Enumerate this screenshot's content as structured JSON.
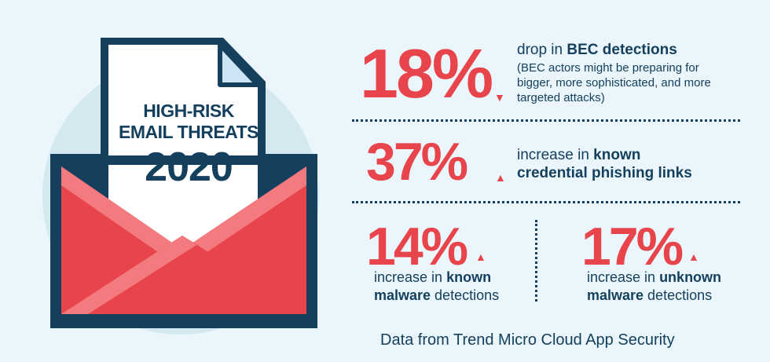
{
  "envelope": {
    "title_line1": "HIGH-RISK",
    "title_line2": "EMAIL THREATS",
    "year": "2020"
  },
  "stats": [
    {
      "value": "18%",
      "direction": "down",
      "text_pre": "drop in ",
      "text_bold": "BEC detections",
      "note": "(BEC actors might be preparing for bigger, more sophisticated, and more targeted attacks)"
    },
    {
      "value": "37%",
      "direction": "up",
      "text_pre": "increase in ",
      "text_bold": "known",
      "text_line2_bold": "credential phishing links"
    },
    {
      "value": "14%",
      "direction": "up",
      "text_pre": "increase in ",
      "text_bold": "known",
      "text_line2_bold": "malware",
      "text_line2_rest": " detections"
    },
    {
      "value": "17%",
      "direction": "up",
      "text_pre": "increase in ",
      "text_bold": "unknown",
      "text_line2_bold": "malware",
      "text_line2_rest": " detections"
    }
  ],
  "source": "Data from Trend Micro Cloud App Security",
  "colors": {
    "background": "#eaf6fb",
    "circle": "#d3e8ef",
    "navy": "#14405e",
    "red": "#e8444b",
    "pink": "#f37a7e",
    "letter": "#ffffff",
    "fold": "#cde4f4"
  }
}
